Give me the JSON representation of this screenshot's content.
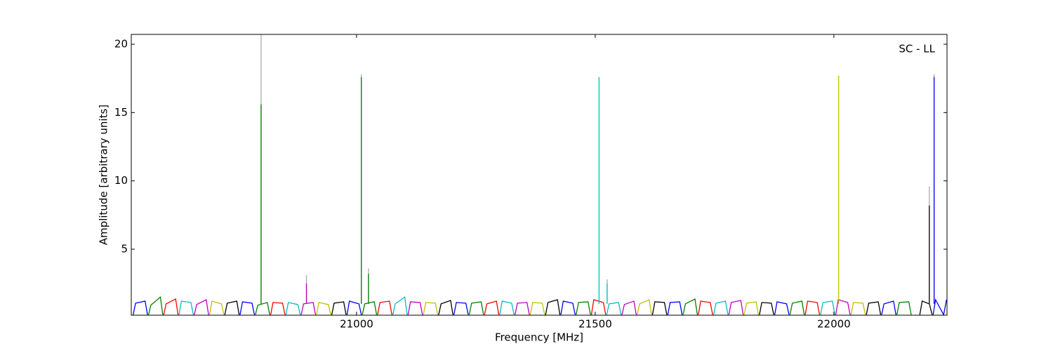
{
  "chart_data": {
    "type": "line",
    "xlabel": "Frequency [MHz]",
    "ylabel": "Amplitude [arbitrary units]",
    "annotation": "SC - LL",
    "xlim": [
      20528,
      22237
    ],
    "ylim": [
      0.17,
      20.72
    ],
    "xticks": [
      21000,
      21500,
      22000
    ],
    "yticks": [
      5,
      10,
      15,
      20
    ],
    "series": [
      {
        "color": "#0000ff",
        "x": [
          20532,
          20537,
          20557,
          20562
        ],
        "values": [
          0.2,
          1.05,
          1.2,
          0.2
        ]
      },
      {
        "color": "#008000",
        "x": [
          20564,
          20569,
          20589,
          20594
        ],
        "values": [
          0.2,
          0.9,
          1.5,
          0.2
        ]
      },
      {
        "color": "#ff0000",
        "x": [
          20596,
          20601,
          20621,
          20626
        ],
        "values": [
          0.2,
          1.0,
          1.35,
          0.2
        ]
      },
      {
        "color": "#00bfbf",
        "x": [
          20628,
          20633,
          20653,
          20658
        ],
        "values": [
          0.2,
          1.2,
          1.1,
          0.2
        ]
      },
      {
        "color": "#bf00bf",
        "x": [
          20660,
          20665,
          20685,
          20690
        ],
        "values": [
          0.2,
          0.95,
          1.3,
          0.2
        ]
      },
      {
        "color": "#bfbf00",
        "x": [
          20692,
          20697,
          20717,
          20722
        ],
        "values": [
          0.2,
          1.2,
          1.0,
          0.2
        ]
      },
      {
        "color": "#000000",
        "x": [
          20724,
          20729,
          20749,
          20754
        ],
        "values": [
          0.2,
          1.05,
          1.2,
          0.2
        ]
      },
      {
        "color": "#0000ff",
        "x": [
          20756,
          20761,
          20781,
          20786
        ],
        "values": [
          0.2,
          1.15,
          1.05,
          0.2
        ]
      },
      {
        "color": "#008000",
        "x": [
          20788,
          20793,
          20813,
          20818
        ],
        "values": [
          0.2,
          0.9,
          1.1,
          0.2
        ]
      },
      {
        "color": "#ff0000",
        "x": [
          20820,
          20825,
          20845,
          20850
        ],
        "values": [
          0.2,
          1.1,
          1.05,
          0.2
        ]
      },
      {
        "color": "#00bfbf",
        "x": [
          20852,
          20857,
          20877,
          20882
        ],
        "values": [
          0.2,
          1.1,
          0.95,
          0.2
        ]
      },
      {
        "color": "#bf00bf",
        "x": [
          20884,
          20889,
          20909,
          20914
        ],
        "values": [
          0.2,
          1.0,
          1.1,
          0.2
        ]
      },
      {
        "color": "#bfbf00",
        "x": [
          20916,
          20921,
          20941,
          20946
        ],
        "values": [
          0.2,
          1.1,
          0.95,
          0.2
        ]
      },
      {
        "color": "#000000",
        "x": [
          20948,
          20953,
          20973,
          20978
        ],
        "values": [
          0.2,
          1.05,
          1.15,
          0.2
        ]
      },
      {
        "color": "#0000ff",
        "x": [
          20980,
          20985,
          21005,
          21010
        ],
        "values": [
          0.2,
          1.2,
          1.0,
          0.2
        ]
      },
      {
        "color": "#008000",
        "x": [
          21012,
          21017,
          21037,
          21042
        ],
        "values": [
          0.2,
          1.0,
          1.15,
          0.2
        ]
      },
      {
        "color": "#ff0000",
        "x": [
          21044,
          21049,
          21069,
          21074
        ],
        "values": [
          0.2,
          1.1,
          1.2,
          0.2
        ]
      },
      {
        "color": "#00bfbf",
        "x": [
          21076,
          21081,
          21101,
          21106
        ],
        "values": [
          0.2,
          1.0,
          1.5,
          0.2
        ]
      },
      {
        "color": "#bf00bf",
        "x": [
          21108,
          21113,
          21133,
          21138
        ],
        "values": [
          0.2,
          1.15,
          1.1,
          0.2
        ]
      },
      {
        "color": "#bfbf00",
        "x": [
          21140,
          21145,
          21165,
          21170
        ],
        "values": [
          0.2,
          1.1,
          1.05,
          0.2
        ]
      },
      {
        "color": "#000000",
        "x": [
          21172,
          21177,
          21197,
          21202
        ],
        "values": [
          0.2,
          1.0,
          1.25,
          0.2
        ]
      },
      {
        "color": "#0000ff",
        "x": [
          21204,
          21209,
          21229,
          21234
        ],
        "values": [
          0.2,
          1.1,
          1.05,
          0.2
        ]
      },
      {
        "color": "#008000",
        "x": [
          21236,
          21241,
          21261,
          21266
        ],
        "values": [
          0.2,
          1.05,
          1.15,
          0.2
        ]
      },
      {
        "color": "#ff0000",
        "x": [
          21268,
          21273,
          21293,
          21298
        ],
        "values": [
          0.2,
          1.0,
          1.2,
          0.2
        ]
      },
      {
        "color": "#00bfbf",
        "x": [
          21300,
          21305,
          21325,
          21330
        ],
        "values": [
          0.2,
          1.2,
          1.05,
          0.2
        ]
      },
      {
        "color": "#bf00bf",
        "x": [
          21332,
          21337,
          21357,
          21362
        ],
        "values": [
          0.2,
          1.05,
          1.1,
          0.2
        ]
      },
      {
        "color": "#bfbf00",
        "x": [
          21364,
          21369,
          21389,
          21394
        ],
        "values": [
          0.2,
          1.1,
          1.05,
          0.2
        ]
      },
      {
        "color": "#000000",
        "x": [
          21396,
          21401,
          21421,
          21426
        ],
        "values": [
          0.2,
          1.1,
          1.3,
          0.2
        ]
      },
      {
        "color": "#0000ff",
        "x": [
          21428,
          21433,
          21453,
          21458
        ],
        "values": [
          0.2,
          1.2,
          1.05,
          0.2
        ]
      },
      {
        "color": "#008000",
        "x": [
          21460,
          21465,
          21485,
          21490
        ],
        "values": [
          0.2,
          1.1,
          1.15,
          0.2
        ]
      },
      {
        "color": "#ff0000",
        "x": [
          21492,
          21497,
          21517,
          21522
        ],
        "values": [
          0.2,
          1.3,
          1.1,
          0.2
        ]
      },
      {
        "color": "#00bfbf",
        "x": [
          21524,
          21529,
          21549,
          21554
        ],
        "values": [
          0.2,
          1.0,
          1.1,
          0.2
        ]
      },
      {
        "color": "#bf00bf",
        "x": [
          21556,
          21561,
          21581,
          21586
        ],
        "values": [
          0.2,
          0.95,
          1.2,
          0.2
        ]
      },
      {
        "color": "#bfbf00",
        "x": [
          21588,
          21593,
          21613,
          21618
        ],
        "values": [
          0.2,
          1.0,
          1.3,
          0.2
        ]
      },
      {
        "color": "#000000",
        "x": [
          21620,
          21625,
          21645,
          21650
        ],
        "values": [
          0.2,
          1.15,
          1.1,
          0.2
        ]
      },
      {
        "color": "#0000ff",
        "x": [
          21652,
          21657,
          21677,
          21682
        ],
        "values": [
          0.2,
          1.1,
          1.15,
          0.2
        ]
      },
      {
        "color": "#008000",
        "x": [
          21684,
          21689,
          21709,
          21714
        ],
        "values": [
          0.2,
          1.0,
          1.35,
          0.2
        ]
      },
      {
        "color": "#ff0000",
        "x": [
          21716,
          21721,
          21741,
          21746
        ],
        "values": [
          0.2,
          1.2,
          1.1,
          0.2
        ]
      },
      {
        "color": "#00bfbf",
        "x": [
          21748,
          21753,
          21773,
          21778
        ],
        "values": [
          0.2,
          1.05,
          1.2,
          0.2
        ]
      },
      {
        "color": "#bf00bf",
        "x": [
          21780,
          21785,
          21805,
          21810
        ],
        "values": [
          0.2,
          1.1,
          1.25,
          0.2
        ]
      },
      {
        "color": "#bfbf00",
        "x": [
          21812,
          21817,
          21837,
          21842
        ],
        "values": [
          0.2,
          1.05,
          1.15,
          0.2
        ]
      },
      {
        "color": "#000000",
        "x": [
          21844,
          21849,
          21869,
          21874
        ],
        "values": [
          0.2,
          1.1,
          1.05,
          0.2
        ]
      },
      {
        "color": "#0000ff",
        "x": [
          21876,
          21881,
          21901,
          21906
        ],
        "values": [
          0.2,
          1.15,
          1.0,
          0.2
        ]
      },
      {
        "color": "#008000",
        "x": [
          21908,
          21913,
          21933,
          21938
        ],
        "values": [
          0.2,
          1.05,
          1.2,
          0.2
        ]
      },
      {
        "color": "#ff0000",
        "x": [
          21940,
          21945,
          21965,
          21970
        ],
        "values": [
          0.2,
          1.2,
          1.1,
          0.2
        ]
      },
      {
        "color": "#00bfbf",
        "x": [
          21972,
          21977,
          21997,
          22002
        ],
        "values": [
          0.2,
          1.1,
          1.2,
          0.2
        ]
      },
      {
        "color": "#bf00bf",
        "x": [
          22004,
          22009,
          22029,
          22034
        ],
        "values": [
          0.2,
          1.3,
          1.1,
          0.2
        ]
      },
      {
        "color": "#bfbf00",
        "x": [
          22036,
          22041,
          22061,
          22066
        ],
        "values": [
          0.2,
          1.1,
          1.05,
          0.2
        ]
      },
      {
        "color": "#000000",
        "x": [
          22068,
          22073,
          22093,
          22098
        ],
        "values": [
          0.2,
          1.05,
          1.15,
          0.2
        ]
      },
      {
        "color": "#0000ff",
        "x": [
          22100,
          22105,
          22125,
          22130
        ],
        "values": [
          0.2,
          1.0,
          1.2,
          0.2
        ]
      },
      {
        "color": "#008000",
        "x": [
          22132,
          22137,
          22157,
          22162
        ],
        "values": [
          0.2,
          1.1,
          1.15,
          0.2
        ]
      },
      {
        "color": "#000000",
        "x": [
          22180,
          22185,
          22200,
          22206
        ],
        "values": [
          0.2,
          1.2,
          1.0,
          0.2
        ]
      },
      {
        "color": "#0000ff",
        "x": [
          22208,
          22213,
          22230,
          22236
        ],
        "values": [
          0.2,
          1.3,
          0.2,
          1.3
        ]
      },
      {
        "color": "#aaaaaa",
        "x": [
          20800,
          20800
        ],
        "values": [
          1.0,
          20.72
        ]
      },
      {
        "color": "#aaaaaa",
        "x": [
          20895,
          20895
        ],
        "values": [
          1.0,
          3.1
        ]
      },
      {
        "color": "#aaaaaa",
        "x": [
          21010,
          21010
        ],
        "values": [
          1.0,
          17.8
        ]
      },
      {
        "color": "#aaaaaa",
        "x": [
          21025,
          21025
        ],
        "values": [
          1.0,
          3.6
        ]
      },
      {
        "color": "#aaaaaa",
        "x": [
          21525,
          21525
        ],
        "values": [
          1.0,
          2.8
        ]
      },
      {
        "color": "#aaaaaa",
        "x": [
          22200,
          22200
        ],
        "values": [
          1.0,
          9.6
        ]
      },
      {
        "color": "#aaaaaa",
        "x": [
          22210,
          22210
        ],
        "values": [
          1.0,
          17.8
        ]
      },
      {
        "color": "#008000",
        "x": [
          20800,
          20800
        ],
        "values": [
          1.0,
          15.6
        ]
      },
      {
        "color": "#bf00bf",
        "x": [
          20895,
          20895
        ],
        "values": [
          1.0,
          2.5
        ]
      },
      {
        "color": "#008000",
        "x": [
          21010,
          21010
        ],
        "values": [
          1.0,
          17.6
        ]
      },
      {
        "color": "#008000",
        "x": [
          21025,
          21025
        ],
        "values": [
          1.0,
          3.2
        ]
      },
      {
        "color": "#00bfbf",
        "x": [
          21508,
          21508
        ],
        "values": [
          1.0,
          17.6
        ]
      },
      {
        "color": "#00bfbf",
        "x": [
          21525,
          21525
        ],
        "values": [
          1.0,
          2.5
        ]
      },
      {
        "color": "#bfbf00",
        "x": [
          22010,
          22010
        ],
        "values": [
          1.0,
          17.7
        ]
      },
      {
        "color": "#000000",
        "x": [
          22200,
          22200
        ],
        "values": [
          1.0,
          8.2
        ]
      },
      {
        "color": "#0000ff",
        "x": [
          22210,
          22210
        ],
        "values": [
          1.0,
          17.6
        ]
      }
    ]
  }
}
